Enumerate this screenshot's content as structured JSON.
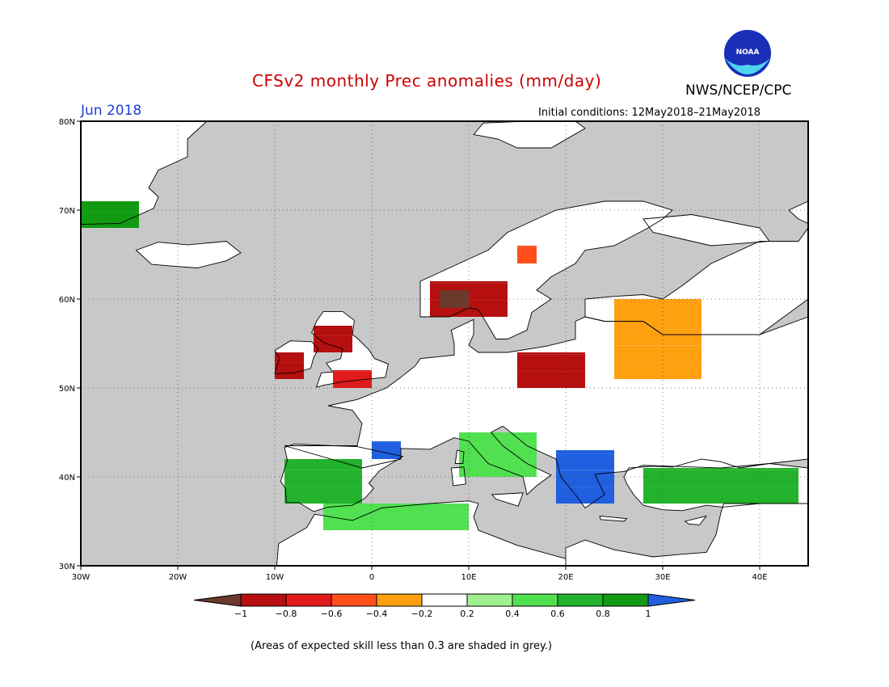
{
  "title": "CFSv2 monthly Prec anomalies (mm/day)",
  "agency": "NWS/NCEP/CPC",
  "logo": {
    "text": "NOAA"
  },
  "month_label": "Jun 2018",
  "initial_conditions": "Initial conditions: 12May2018–21May2018",
  "footnote": "(Areas of expected skill less than 0.3 are shaded in grey.)",
  "map": {
    "projection": "lat-lon",
    "lon_range": [
      -30,
      45
    ],
    "lat_range": [
      30,
      80
    ],
    "ocean_color": "#c8c8c8",
    "lat_ticks": [
      "30N",
      "40N",
      "50N",
      "60N",
      "70N",
      "80N"
    ],
    "lon_ticks": [
      "30W",
      "20W",
      "10W",
      "0",
      "10E",
      "20E",
      "30E",
      "40E"
    ]
  },
  "colorbar": {
    "labels": [
      "−1",
      "−0.8",
      "−0.6",
      "−0.4",
      "−0.2",
      "0.2",
      "0.4",
      "0.6",
      "0.8",
      "1"
    ],
    "colors": [
      "#6b3a2a",
      "#b50f0f",
      "#e01b1b",
      "#ff4e1a",
      "#ffa010",
      "#ffffff",
      "#a0f090",
      "#50e050",
      "#22b22b",
      "#129a12",
      "#2060e0"
    ]
  },
  "anomaly_regions": [
    {
      "name": "central-scandinavia",
      "lon": [
        6,
        14
      ],
      "lat": [
        58,
        62
      ],
      "level": "-0.8 to -1",
      "color": "#b50f0f"
    },
    {
      "name": "southwest-norway",
      "lon": [
        7,
        10
      ],
      "lat": [
        59,
        61
      ],
      "level": "< -1",
      "color": "#6b3a2a"
    },
    {
      "name": "central-sweden",
      "lon": [
        15,
        17
      ],
      "lat": [
        64,
        66
      ],
      "level": "-0.6",
      "color": "#ff4e1a"
    },
    {
      "name": "ireland",
      "lon": [
        -10,
        -7
      ],
      "lat": [
        51,
        54
      ],
      "level": "-0.8",
      "color": "#b50f0f"
    },
    {
      "name": "northern-britain",
      "lon": [
        -6,
        -2
      ],
      "lat": [
        54,
        57
      ],
      "level": "-0.8",
      "color": "#b50f0f"
    },
    {
      "name": "southern-england",
      "lon": [
        -4,
        0
      ],
      "lat": [
        50,
        52
      ],
      "level": "-0.6",
      "color": "#e01b1b"
    },
    {
      "name": "poland-germany",
      "lon": [
        15,
        22
      ],
      "lat": [
        50,
        54
      ],
      "level": "-0.8",
      "color": "#b50f0f"
    },
    {
      "name": "belarus-russia",
      "lon": [
        25,
        34
      ],
      "lat": [
        51,
        60
      ],
      "level": "-0.4",
      "color": "#ffa010"
    },
    {
      "name": "iberia",
      "lon": [
        -9,
        -1
      ],
      "lat": [
        37,
        42
      ],
      "level": "+0.6 to +0.8",
      "color": "#22b22b"
    },
    {
      "name": "pyrenees-france",
      "lon": [
        0,
        3
      ],
      "lat": [
        42,
        44
      ],
      "level": "+1",
      "color": "#2060e0"
    },
    {
      "name": "italy",
      "lon": [
        9,
        17
      ],
      "lat": [
        40,
        45
      ],
      "level": "+0.6",
      "color": "#50e050"
    },
    {
      "name": "balkans-greece",
      "lon": [
        19,
        25
      ],
      "lat": [
        37,
        43
      ],
      "level": "+1",
      "color": "#2060e0"
    },
    {
      "name": "turkey",
      "lon": [
        28,
        44
      ],
      "lat": [
        37,
        41
      ],
      "level": "+0.8 to +1",
      "color": "#22b22b"
    },
    {
      "name": "north-africa",
      "lon": [
        -5,
        10
      ],
      "lat": [
        34,
        37
      ],
      "level": "+0.4 to +0.6",
      "color": "#50e050"
    },
    {
      "name": "greenland-coast",
      "lon": [
        -30,
        -24
      ],
      "lat": [
        68,
        71
      ],
      "level": "+0.8",
      "color": "#129a12"
    }
  ]
}
